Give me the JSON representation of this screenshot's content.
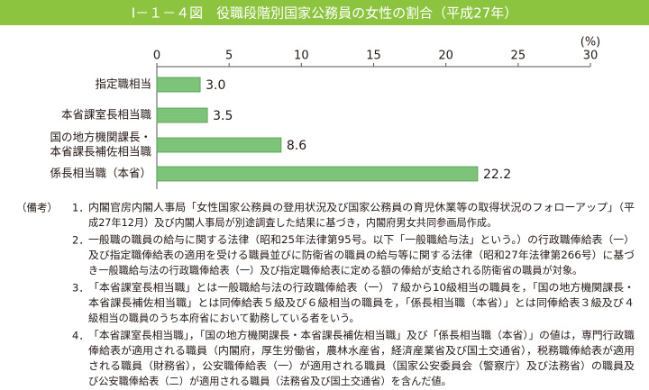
{
  "chart_data": {
    "type": "bar",
    "orientation": "horizontal",
    "title": "Ⅰ－１－４図　役職段階別国家公務員の女性の割合（平成27年）",
    "unit": "(%)",
    "categories": [
      [
        "指定職相当"
      ],
      [
        "本省課室長相当職"
      ],
      [
        "国の地方機関課長・",
        "本省課長補佐相当職"
      ],
      [
        "係長相当職（本省）"
      ]
    ],
    "values": [
      3.0,
      3.5,
      8.6,
      22.2
    ],
    "value_labels": [
      "3.0",
      "3.5",
      "8.6",
      "22.2"
    ],
    "color": "#7dc47a",
    "xlim": [
      0,
      30
    ],
    "xticks": [
      0,
      5,
      10,
      15,
      20,
      25,
      30
    ],
    "notes_label": "（備考）",
    "notes": [
      {
        "number": "1．",
        "lines": [
          "内閣官房内閣人事局「女性国家公務員の登用状況及び国家公務員の育児休業等の取得状況のフォローアップ」（平",
          "成27年12月）及び内閣人事局が別途調査した結果に基づき，内閣府男女共同参画局作成。"
        ]
      },
      {
        "number": "2．",
        "lines": [
          "一般職の職員の給与に関する法律（昭和25年法律第95号。以下「一般職給与法」という。）の行政職俸給表（一）",
          "及び指定職俸給表の適用を受ける職員並びに防衛省の職員の給与等に関する法律（昭和27年法律第266号）に基づ",
          "き一般職給与法の行政職俸給表（一）及び指定職俸給表に定める額の俸給が支給される防衛省の職員が対象。"
        ]
      },
      {
        "number": "3．",
        "lines": [
          "「本省課室長相当職」とは一般職給与法の行政職俸給表（一）７級から10級相当の職員を，「国の地方機関課長・",
          "本省課長補佐相当職」とは同俸給表５級及び６級相当の職員を，「係長相当職（本省）」とは同俸給表３級及び４",
          "級相当の職員のうち本府省において勤務している者をいう。"
        ]
      },
      {
        "number": "4．",
        "lines": [
          "「本省課室長相当職」，「国の地方機関課長・本省課長補佐相当職」及び「係長相当職（本省）」の値は，専門行政職",
          "俸給表が適用される職員（内閣府，厚生労働省，農林水産省，経済産業省及び国土交通省），税務職俸給表が適用",
          "される職員（財務省），公安職俸給表（一）が適用される職員（国家公安委員会（警察庁）及び法務省）の職員及",
          "び公安職俸給表（二）が適用される職員（法務省及び国土交通省）を含んだ値。"
        ]
      }
    ]
  }
}
